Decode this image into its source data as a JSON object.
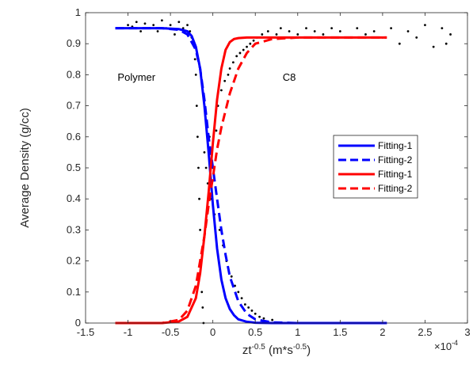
{
  "chart_data": {
    "type": "line",
    "title": "",
    "xlabel": {
      "base": "zt",
      "sup1": "-0.5",
      "mid": " (m*s",
      "sup2": "-0.5",
      "end": ")"
    },
    "ylabel": "Average Density (g/cc)",
    "x_multiplier": {
      "base": "×10",
      "exp": "-4"
    },
    "xlim": [
      -1.5,
      3
    ],
    "ylim": [
      0,
      1
    ],
    "x_ticks": [
      -1.5,
      -1,
      -0.5,
      0,
      0.5,
      1,
      1.5,
      2,
      2.5,
      3
    ],
    "x_tick_labels": [
      "-1.5",
      "-1",
      "-0.5",
      "0",
      "0.5",
      "1",
      "1.5",
      "2",
      "2.5",
      "3"
    ],
    "y_ticks": [
      0,
      0.1,
      0.2,
      0.3,
      0.4,
      0.5,
      0.6,
      0.7,
      0.8,
      0.9,
      1
    ],
    "y_tick_labels": [
      "0",
      "0.1",
      "0.2",
      "0.3",
      "0.4",
      "0.5",
      "0.6",
      "0.7",
      "0.8",
      "0.9",
      "1"
    ],
    "grid": false,
    "legend_position": "right",
    "annotations": [
      {
        "text": "Polymer",
        "x": -0.9,
        "y": 0.78
      },
      {
        "text": "C8",
        "x": 0.9,
        "y": 0.78
      }
    ],
    "series": [
      {
        "name": "Fitting-1",
        "color": "#0000ff",
        "dash": "solid",
        "x": [
          -1.15,
          -0.6,
          -0.4,
          -0.3,
          -0.25,
          -0.2,
          -0.15,
          -0.1,
          -0.05,
          0,
          0.05,
          0.1,
          0.15,
          0.2,
          0.25,
          0.3,
          0.4,
          0.5,
          0.7,
          1.0,
          2.05
        ],
        "y": [
          0.95,
          0.95,
          0.947,
          0.94,
          0.925,
          0.89,
          0.82,
          0.7,
          0.55,
          0.38,
          0.24,
          0.14,
          0.08,
          0.045,
          0.025,
          0.012,
          0.004,
          0.001,
          0,
          0,
          0
        ]
      },
      {
        "name": "Fitting-2",
        "color": "#0000ff",
        "dash": "dashed",
        "x": [
          -1.15,
          -0.6,
          -0.4,
          -0.3,
          -0.2,
          -0.15,
          -0.1,
          -0.05,
          0,
          0.05,
          0.1,
          0.15,
          0.2,
          0.3,
          0.4,
          0.5,
          0.7,
          1.0,
          2.05
        ],
        "y": [
          0.95,
          0.95,
          0.945,
          0.93,
          0.88,
          0.82,
          0.72,
          0.6,
          0.5,
          0.4,
          0.3,
          0.22,
          0.15,
          0.07,
          0.03,
          0.012,
          0.002,
          0,
          0
        ]
      },
      {
        "name": "Fitting-1",
        "color": "#ff0000",
        "dash": "solid",
        "x": [
          -1.15,
          -0.6,
          -0.4,
          -0.3,
          -0.2,
          -0.15,
          -0.1,
          -0.05,
          0,
          0.05,
          0.1,
          0.15,
          0.2,
          0.25,
          0.3,
          0.4,
          0.6,
          1.0,
          2.05
        ],
        "y": [
          0,
          0,
          0.005,
          0.02,
          0.08,
          0.16,
          0.28,
          0.42,
          0.58,
          0.72,
          0.82,
          0.88,
          0.905,
          0.915,
          0.918,
          0.92,
          0.92,
          0.92,
          0.92
        ]
      },
      {
        "name": "Fitting-2",
        "color": "#ff0000",
        "dash": "dashed",
        "x": [
          -1.15,
          -0.6,
          -0.4,
          -0.3,
          -0.2,
          -0.1,
          -0.05,
          0,
          0.05,
          0.1,
          0.2,
          0.3,
          0.4,
          0.5,
          0.7,
          1.0,
          2.05
        ],
        "y": [
          0,
          0,
          0.01,
          0.04,
          0.12,
          0.28,
          0.38,
          0.47,
          0.56,
          0.63,
          0.74,
          0.82,
          0.87,
          0.9,
          0.915,
          0.92,
          0.92
        ]
      }
    ],
    "scatter_points": [
      [
        -1.1,
        0.95
      ],
      [
        -1.0,
        0.96
      ],
      [
        -0.95,
        0.955
      ],
      [
        -0.9,
        0.97
      ],
      [
        -0.85,
        0.94
      ],
      [
        -0.8,
        0.965
      ],
      [
        -0.75,
        0.95
      ],
      [
        -0.7,
        0.96
      ],
      [
        -0.65,
        0.94
      ],
      [
        -0.6,
        0.975
      ],
      [
        -0.55,
        0.95
      ],
      [
        -0.5,
        0.96
      ],
      [
        -0.45,
        0.93
      ],
      [
        -0.4,
        0.97
      ],
      [
        -0.35,
        0.95
      ],
      [
        -0.3,
        0.96
      ],
      [
        -0.27,
        0.94
      ],
      [
        -0.25,
        0.92
      ],
      [
        -0.23,
        0.9
      ],
      [
        -0.21,
        0.85
      ],
      [
        -0.2,
        0.8
      ],
      [
        -0.19,
        0.7
      ],
      [
        -0.18,
        0.6
      ],
      [
        -0.17,
        0.5
      ],
      [
        -0.16,
        0.4
      ],
      [
        -0.15,
        0.3
      ],
      [
        -0.14,
        0.2
      ],
      [
        -0.13,
        0.1
      ],
      [
        -0.12,
        0.05
      ],
      [
        -0.11,
        0.0
      ],
      [
        -0.1,
        0.55
      ],
      [
        -0.08,
        0.5
      ],
      [
        -0.06,
        0.45
      ],
      [
        -0.04,
        0.6
      ],
      [
        -0.02,
        0.4
      ],
      [
        0.0,
        0.5
      ],
      [
        0.02,
        0.35
      ],
      [
        0.04,
        0.62
      ],
      [
        0.06,
        0.7
      ],
      [
        0.08,
        0.3
      ],
      [
        0.1,
        0.75
      ],
      [
        0.12,
        0.25
      ],
      [
        0.14,
        0.78
      ],
      [
        0.16,
        0.2
      ],
      [
        0.18,
        0.8
      ],
      [
        0.2,
        0.82
      ],
      [
        0.22,
        0.15
      ],
      [
        0.24,
        0.84
      ],
      [
        0.26,
        0.12
      ],
      [
        0.28,
        0.86
      ],
      [
        0.3,
        0.1
      ],
      [
        0.32,
        0.87
      ],
      [
        0.34,
        0.08
      ],
      [
        0.36,
        0.88
      ],
      [
        0.38,
        0.06
      ],
      [
        0.4,
        0.89
      ],
      [
        0.42,
        0.05
      ],
      [
        0.44,
        0.9
      ],
      [
        0.46,
        0.04
      ],
      [
        0.48,
        0.91
      ],
      [
        0.5,
        0.03
      ],
      [
        0.52,
        0.92
      ],
      [
        0.55,
        0.02
      ],
      [
        0.58,
        0.93
      ],
      [
        0.6,
        0.015
      ],
      [
        0.65,
        0.94
      ],
      [
        0.7,
        0.01
      ],
      [
        0.75,
        0.93
      ],
      [
        0.8,
        0.95
      ],
      [
        0.9,
        0.94
      ],
      [
        1.0,
        0.93
      ],
      [
        1.1,
        0.95
      ],
      [
        1.2,
        0.94
      ],
      [
        1.3,
        0.93
      ],
      [
        1.4,
        0.95
      ],
      [
        1.5,
        0.94
      ],
      [
        1.6,
        0.92
      ],
      [
        1.7,
        0.95
      ],
      [
        1.8,
        0.93
      ],
      [
        1.9,
        0.94
      ],
      [
        2.0,
        0.92
      ],
      [
        2.1,
        0.95
      ],
      [
        2.2,
        0.9
      ],
      [
        2.3,
        0.94
      ],
      [
        2.4,
        0.92
      ],
      [
        2.5,
        0.96
      ],
      [
        2.6,
        0.89
      ],
      [
        2.7,
        0.95
      ],
      [
        2.75,
        0.9
      ],
      [
        2.8,
        0.93
      ]
    ]
  }
}
